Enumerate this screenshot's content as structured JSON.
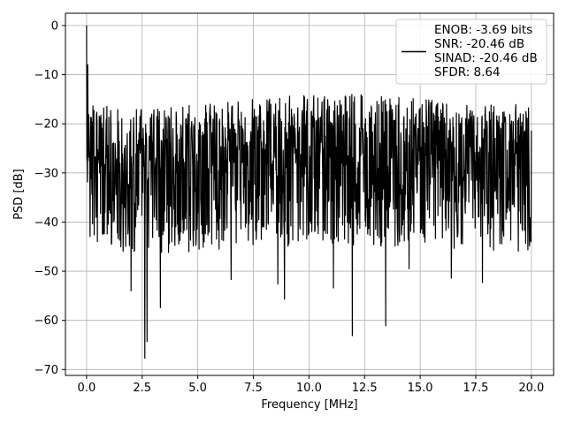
{
  "chart_data": {
    "type": "line",
    "xlabel": "Frequency [MHz]",
    "ylabel": "PSD [dB]",
    "xlim": [
      -0.95,
      21.0
    ],
    "ylim": [
      -71.2,
      2.5
    ],
    "grid": true,
    "legend_placement": "top-right",
    "x_ticks": [
      0.0,
      2.5,
      5.0,
      7.5,
      10.0,
      12.5,
      15.0,
      17.5,
      20.0
    ],
    "x_tick_labels": [
      "0.0",
      "2.5",
      "5.0",
      "7.5",
      "10.0",
      "12.5",
      "15.0",
      "17.5",
      "20.0"
    ],
    "y_ticks": [
      0,
      -10,
      -20,
      -30,
      -40,
      -50,
      -60,
      -70
    ],
    "y_tick_labels": [
      "0",
      "−10",
      "−20",
      "−30",
      "−40",
      "−50",
      "−60",
      "−70"
    ],
    "legend": {
      "lines": [
        "ENOB: -3.69 bits",
        "SNR: -20.46 dB",
        "SINAD: -20.46 dB",
        "SFDR: 8.64"
      ],
      "line_color": "#000000"
    },
    "series": [
      {
        "color": "#000000",
        "noise_floor": {
          "x": [
            0.0,
            2.5,
            5.0,
            7.5,
            10.0,
            12.5,
            15.0,
            17.5,
            20.0
          ],
          "peak": [
            -16,
            -17,
            -16,
            -15,
            -14,
            -14,
            -15,
            -16,
            -16
          ],
          "median": [
            -28,
            -29,
            -28,
            -27,
            -27,
            -27,
            -28,
            -28,
            -28
          ],
          "low": [
            -44,
            -47,
            -46,
            -45,
            -45,
            -45,
            -45,
            -46,
            -46
          ]
        },
        "notable_points": [
          {
            "x": 0.0,
            "y": 0.0
          },
          {
            "x": 0.05,
            "y": -8.0
          },
          {
            "x": 2.62,
            "y": -67.7
          },
          {
            "x": 2.72,
            "y": -64.3
          },
          {
            "x": 3.32,
            "y": -57.4
          },
          {
            "x": 2.0,
            "y": -54.0
          },
          {
            "x": 6.5,
            "y": -51.7
          },
          {
            "x": 8.6,
            "y": -52.6
          },
          {
            "x": 8.9,
            "y": -55.7
          },
          {
            "x": 11.1,
            "y": -53.4
          },
          {
            "x": 11.95,
            "y": -63.1
          },
          {
            "x": 13.45,
            "y": -61.1
          },
          {
            "x": 14.5,
            "y": -49.5
          },
          {
            "x": 16.4,
            "y": -51.4
          },
          {
            "x": 17.8,
            "y": -52.3
          }
        ]
      }
    ]
  }
}
